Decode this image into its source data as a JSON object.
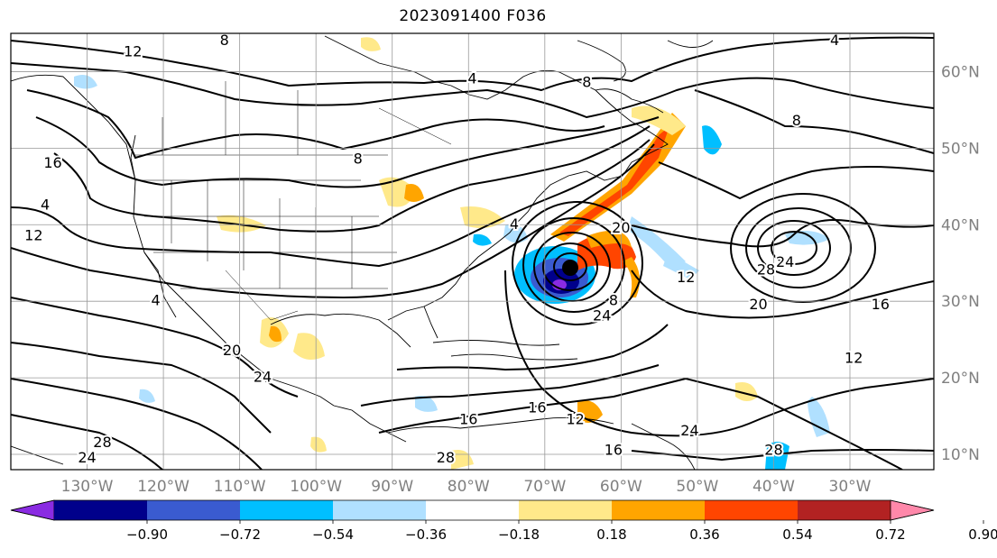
{
  "title": "2023091400 F036",
  "lon_labels": [
    "130°W",
    "120°W",
    "110°W",
    "100°W",
    "90°W",
    "80°W",
    "70°W",
    "60°W",
    "50°W",
    "40°W",
    "30°W"
  ],
  "lon_values": [
    -130,
    -120,
    -110,
    -100,
    -90,
    -80,
    -70,
    -60,
    -50,
    -40,
    -30
  ],
  "lat_labels": [
    "60°N",
    "50°N",
    "40°N",
    "30°N",
    "20°N",
    "10°N"
  ],
  "lat_values": [
    60,
    50,
    40,
    30,
    20,
    10
  ],
  "extent": {
    "lon_min": -140,
    "lon_max": -19,
    "lat_min": 8,
    "lat_max": 65
  },
  "colorbar": {
    "tick_labels": [
      "−0.90",
      "−0.72",
      "−0.54",
      "−0.36",
      "−0.18",
      "0.18",
      "0.36",
      "0.54",
      "0.72",
      "0.90"
    ],
    "colors": [
      "#8a2be2",
      "#00008b",
      "#3a5bd0",
      "#00bfff",
      "#b0e0ff",
      "#ffffff",
      "#ffe98a",
      "#ffa500",
      "#ff4500",
      "#b22222",
      "#ff88aa"
    ]
  },
  "contour_labels": [
    {
      "text": "12",
      "lon": -124,
      "lat": 62.5
    },
    {
      "text": "8",
      "lon": -112,
      "lat": 64
    },
    {
      "text": "4",
      "lon": -79.5,
      "lat": 59
    },
    {
      "text": "8",
      "lon": -64.5,
      "lat": 58.5
    },
    {
      "text": "4",
      "lon": -32,
      "lat": 64
    },
    {
      "text": "8",
      "lon": -37,
      "lat": 53.5
    },
    {
      "text": "8",
      "lon": -94.5,
      "lat": 48.5
    },
    {
      "text": "16",
      "lon": -134.5,
      "lat": 48
    },
    {
      "text": "4",
      "lon": -135.5,
      "lat": 42.5
    },
    {
      "text": "12",
      "lon": -137,
      "lat": 38.5
    },
    {
      "text": "20",
      "lon": -60,
      "lat": 39.5
    },
    {
      "text": "4",
      "lon": -74,
      "lat": 40
    },
    {
      "text": "12",
      "lon": -51.5,
      "lat": 33
    },
    {
      "text": "28",
      "lon": -41,
      "lat": 34
    },
    {
      "text": "24",
      "lon": -38.5,
      "lat": 35
    },
    {
      "text": "8",
      "lon": -61,
      "lat": 30
    },
    {
      "text": "20",
      "lon": -42,
      "lat": 29.5
    },
    {
      "text": "16",
      "lon": -26,
      "lat": 29.5
    },
    {
      "text": "4",
      "lon": -121,
      "lat": 30
    },
    {
      "text": "20",
      "lon": -111,
      "lat": 23.5
    },
    {
      "text": "24",
      "lon": -107,
      "lat": 20
    },
    {
      "text": "24",
      "lon": -62.5,
      "lat": 28
    },
    {
      "text": "12",
      "lon": -29.5,
      "lat": 22.5
    },
    {
      "text": "16",
      "lon": -80,
      "lat": 14.5
    },
    {
      "text": "16",
      "lon": -71,
      "lat": 16
    },
    {
      "text": "12",
      "lon": -66,
      "lat": 14.5
    },
    {
      "text": "24",
      "lon": -51,
      "lat": 13
    },
    {
      "text": "28",
      "lon": -128,
      "lat": 11.5
    },
    {
      "text": "24",
      "lon": -130,
      "lat": 9.5
    },
    {
      "text": "28",
      "lon": -83,
      "lat": 9.5
    },
    {
      "text": "16",
      "lon": -61,
      "lat": 10.5
    },
    {
      "text": "28",
      "lon": -40,
      "lat": 10.5
    }
  ]
}
